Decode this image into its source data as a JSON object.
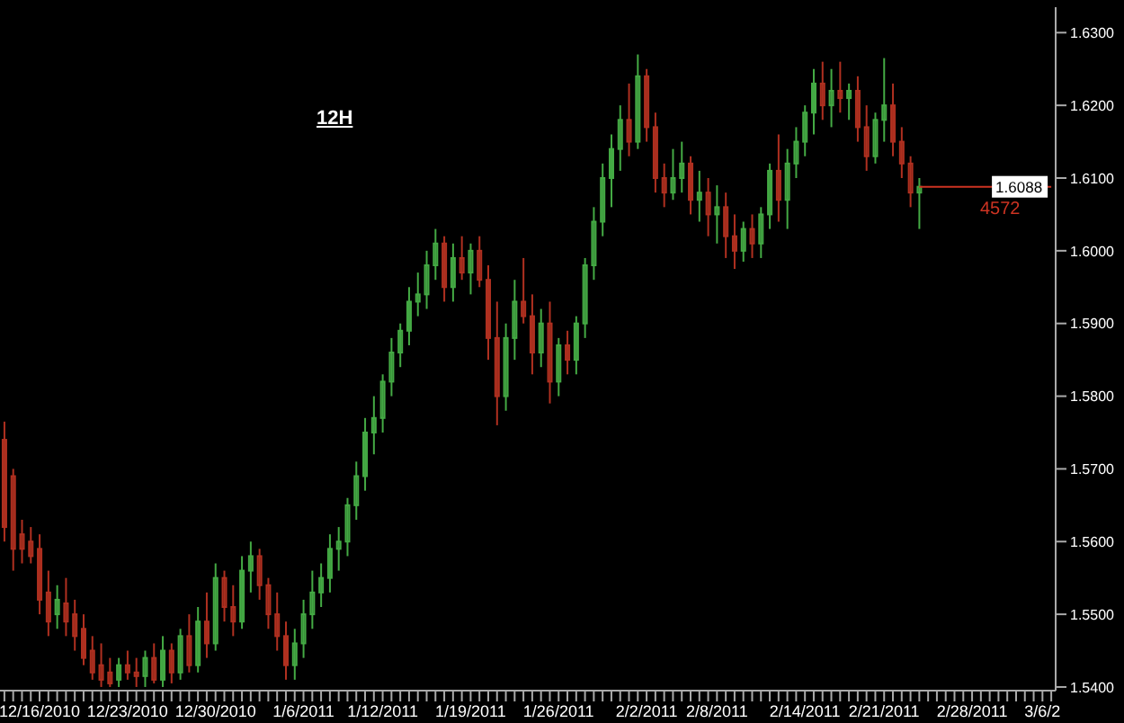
{
  "chart_data": {
    "type": "candlestick",
    "categories": [
      null,
      null,
      null,
      null,
      "12/16/2010",
      null,
      null,
      null,
      null,
      null,
      null,
      null,
      null,
      null,
      "12/23/2010",
      null,
      null,
      null,
      null,
      null,
      null,
      null,
      null,
      null,
      "12/30/2010",
      null,
      null,
      null,
      null,
      null,
      null,
      null,
      null,
      null,
      "1/6/2011",
      null,
      null,
      null,
      null,
      null,
      null,
      null,
      null,
      "1/12/2011",
      null,
      null,
      null,
      null,
      null,
      null,
      null,
      null,
      null,
      "1/19/2011",
      null,
      null,
      null,
      null,
      null,
      null,
      null,
      null,
      null,
      "1/26/2011",
      null,
      null,
      null,
      null,
      null,
      null,
      null,
      null,
      null,
      "2/2/2011",
      null,
      null,
      null,
      null,
      null,
      null,
      null,
      "2/8/2011",
      null,
      null,
      null,
      null,
      null,
      null,
      null,
      null,
      null,
      "2/14/2011",
      null,
      null,
      null,
      null,
      null,
      null,
      null,
      null,
      "2/21/2011",
      null,
      null,
      null,
      null,
      null,
      null,
      null,
      null,
      null,
      "2/28/2011",
      null,
      null,
      null,
      null,
      null,
      null,
      null,
      "3/6/2",
      null
    ],
    "ohlc": [
      [
        1.574,
        1.5765,
        1.56,
        1.562
      ],
      [
        1.569,
        1.57,
        1.556,
        1.559
      ],
      [
        1.561,
        1.563,
        1.557,
        1.559
      ],
      [
        1.56,
        1.562,
        1.557,
        1.558
      ],
      [
        1.559,
        1.561,
        1.55,
        1.552
      ],
      [
        1.553,
        1.556,
        1.547,
        1.549
      ],
      [
        1.55,
        1.554,
        1.548,
        1.552
      ],
      [
        1.5515,
        1.555,
        1.547,
        1.549
      ],
      [
        1.55,
        1.552,
        1.545,
        1.547
      ],
      [
        1.548,
        1.55,
        1.543,
        1.544
      ],
      [
        1.545,
        1.547,
        1.541,
        1.542
      ],
      [
        1.543,
        1.546,
        1.54,
        1.541
      ],
      [
        1.542,
        1.544,
        1.54,
        1.5405
      ],
      [
        1.541,
        1.544,
        1.54,
        1.543
      ],
      [
        1.543,
        1.545,
        1.541,
        1.542
      ],
      [
        1.542,
        1.544,
        1.54,
        1.5415
      ],
      [
        1.5415,
        1.545,
        1.54,
        1.544
      ],
      [
        1.544,
        1.546,
        1.5405,
        1.541
      ],
      [
        1.541,
        1.547,
        1.54,
        1.545
      ],
      [
        1.545,
        1.546,
        1.5405,
        1.542
      ],
      [
        1.542,
        1.548,
        1.541,
        1.547
      ],
      [
        1.547,
        1.55,
        1.542,
        1.543
      ],
      [
        1.543,
        1.551,
        1.542,
        1.549
      ],
      [
        1.549,
        1.553,
        1.544,
        1.546
      ],
      [
        1.546,
        1.557,
        1.545,
        1.555
      ],
      [
        1.555,
        1.556,
        1.549,
        1.551
      ],
      [
        1.551,
        1.554,
        1.547,
        1.549
      ],
      [
        1.549,
        1.558,
        1.548,
        1.556
      ],
      [
        1.556,
        1.56,
        1.553,
        1.558
      ],
      [
        1.558,
        1.559,
        1.552,
        1.554
      ],
      [
        1.554,
        1.555,
        1.548,
        1.55
      ],
      [
        1.55,
        1.553,
        1.545,
        1.547
      ],
      [
        1.547,
        1.549,
        1.541,
        1.543
      ],
      [
        1.543,
        1.548,
        1.541,
        1.546
      ],
      [
        1.546,
        1.552,
        1.544,
        1.55
      ],
      [
        1.55,
        1.556,
        1.548,
        1.553
      ],
      [
        1.553,
        1.557,
        1.551,
        1.555
      ],
      [
        1.555,
        1.561,
        1.553,
        1.559
      ],
      [
        1.559,
        1.562,
        1.556,
        1.56
      ],
      [
        1.56,
        1.566,
        1.558,
        1.565
      ],
      [
        1.565,
        1.571,
        1.563,
        1.569
      ],
      [
        1.569,
        1.577,
        1.567,
        1.575
      ],
      [
        1.575,
        1.58,
        1.572,
        1.577
      ],
      [
        1.577,
        1.583,
        1.575,
        1.582
      ],
      [
        1.582,
        1.588,
        1.58,
        1.586
      ],
      [
        1.586,
        1.59,
        1.584,
        1.589
      ],
      [
        1.589,
        1.595,
        1.587,
        1.593
      ],
      [
        1.593,
        1.597,
        1.591,
        1.594
      ],
      [
        1.594,
        1.6,
        1.592,
        1.598
      ],
      [
        1.598,
        1.603,
        1.596,
        1.601
      ],
      [
        1.601,
        1.602,
        1.593,
        1.595
      ],
      [
        1.595,
        1.601,
        1.593,
        1.599
      ],
      [
        1.599,
        1.602,
        1.596,
        1.597
      ],
      [
        1.597,
        1.601,
        1.594,
        1.6
      ],
      [
        1.6,
        1.602,
        1.595,
        1.596
      ],
      [
        1.596,
        1.598,
        1.585,
        1.588
      ],
      [
        1.588,
        1.593,
        1.576,
        1.58
      ],
      [
        1.58,
        1.59,
        1.578,
        1.588
      ],
      [
        1.588,
        1.596,
        1.585,
        1.593
      ],
      [
        1.593,
        1.599,
        1.59,
        1.591
      ],
      [
        1.591,
        1.594,
        1.583,
        1.586
      ],
      [
        1.586,
        1.592,
        1.584,
        1.59
      ],
      [
        1.59,
        1.593,
        1.579,
        1.582
      ],
      [
        1.582,
        1.588,
        1.58,
        1.587
      ],
      [
        1.587,
        1.589,
        1.583,
        1.585
      ],
      [
        1.585,
        1.591,
        1.583,
        1.59
      ],
      [
        1.59,
        1.599,
        1.588,
        1.598
      ],
      [
        1.598,
        1.606,
        1.596,
        1.604
      ],
      [
        1.604,
        1.612,
        1.602,
        1.61
      ],
      [
        1.61,
        1.616,
        1.606,
        1.614
      ],
      [
        1.614,
        1.62,
        1.611,
        1.618
      ],
      [
        1.618,
        1.623,
        1.613,
        1.615
      ],
      [
        1.615,
        1.627,
        1.614,
        1.624
      ],
      [
        1.624,
        1.625,
        1.615,
        1.617
      ],
      [
        1.617,
        1.619,
        1.608,
        1.61
      ],
      [
        1.61,
        1.612,
        1.606,
        1.608
      ],
      [
        1.608,
        1.614,
        1.607,
        1.61
      ],
      [
        1.61,
        1.615,
        1.608,
        1.612
      ],
      [
        1.612,
        1.613,
        1.605,
        1.607
      ],
      [
        1.607,
        1.611,
        1.604,
        1.608
      ],
      [
        1.608,
        1.61,
        1.602,
        1.605
      ],
      [
        1.605,
        1.609,
        1.601,
        1.606
      ],
      [
        1.606,
        1.608,
        1.599,
        1.602
      ],
      [
        1.602,
        1.605,
        1.5975,
        1.6
      ],
      [
        1.6,
        1.604,
        1.5985,
        1.603
      ],
      [
        1.603,
        1.605,
        1.599,
        1.601
      ],
      [
        1.601,
        1.606,
        1.599,
        1.605
      ],
      [
        1.605,
        1.612,
        1.603,
        1.611
      ],
      [
        1.611,
        1.616,
        1.604,
        1.607
      ],
      [
        1.607,
        1.614,
        1.603,
        1.612
      ],
      [
        1.612,
        1.617,
        1.61,
        1.615
      ],
      [
        1.615,
        1.62,
        1.613,
        1.619
      ],
      [
        1.619,
        1.625,
        1.616,
        1.623
      ],
      [
        1.623,
        1.626,
        1.618,
        1.62
      ],
      [
        1.62,
        1.625,
        1.617,
        1.622
      ],
      [
        1.622,
        1.626,
        1.619,
        1.621
      ],
      [
        1.621,
        1.623,
        1.618,
        1.622
      ],
      [
        1.622,
        1.624,
        1.615,
        1.617
      ],
      [
        1.617,
        1.62,
        1.611,
        1.613
      ],
      [
        1.613,
        1.619,
        1.612,
        1.618
      ],
      [
        1.618,
        1.6265,
        1.615,
        1.62
      ],
      [
        1.62,
        1.623,
        1.613,
        1.615
      ],
      [
        1.615,
        1.617,
        1.61,
        1.612
      ],
      [
        1.612,
        1.613,
        1.606,
        1.608
      ],
      [
        1.608,
        1.61,
        1.603,
        1.6088
      ],
      null,
      null,
      null,
      null,
      null,
      null,
      null,
      null,
      null,
      null,
      null,
      null,
      null,
      null,
      null
    ],
    "colors": [
      "#b03020",
      "#b03020",
      "#b03020",
      "#b03020",
      "#b03020",
      "#b03020",
      "#44aa44",
      "#b03020",
      "#b03020",
      "#b03020",
      "#b03020",
      "#b03020",
      "#b03020",
      "#44aa44",
      "#b03020",
      "#b03020",
      "#44aa44",
      "#b03020",
      "#44aa44",
      "#b03020",
      "#44aa44",
      "#b03020",
      "#44aa44",
      "#b03020",
      "#44aa44",
      "#b03020",
      "#b03020",
      "#44aa44",
      "#44aa44",
      "#b03020",
      "#b03020",
      "#b03020",
      "#b03020",
      "#44aa44",
      "#44aa44",
      "#44aa44",
      "#44aa44",
      "#44aa44",
      "#44aa44",
      "#44aa44",
      "#44aa44",
      "#44aa44",
      "#44aa44",
      "#44aa44",
      "#44aa44",
      "#44aa44",
      "#44aa44",
      "#44aa44",
      "#44aa44",
      "#44aa44",
      "#b03020",
      "#44aa44",
      "#b03020",
      "#44aa44",
      "#b03020",
      "#b03020",
      "#b03020",
      "#44aa44",
      "#44aa44",
      "#b03020",
      "#b03020",
      "#44aa44",
      "#b03020",
      "#44aa44",
      "#b03020",
      "#44aa44",
      "#44aa44",
      "#44aa44",
      "#44aa44",
      "#44aa44",
      "#44aa44",
      "#b03020",
      "#44aa44",
      "#b03020",
      "#b03020",
      "#b03020",
      "#44aa44",
      "#44aa44",
      "#b03020",
      "#44aa44",
      "#b03020",
      "#44aa44",
      "#b03020",
      "#b03020",
      "#44aa44",
      "#b03020",
      "#44aa44",
      "#44aa44",
      "#b03020",
      "#44aa44",
      "#44aa44",
      "#44aa44",
      "#44aa44",
      "#b03020",
      "#44aa44",
      "#b03020",
      "#44aa44",
      "#b03020",
      "#b03020",
      "#44aa44",
      "#44aa44",
      "#b03020",
      "#b03020",
      "#b03020",
      "#44aa44",
      null,
      null,
      null,
      null,
      null,
      null,
      null,
      null,
      null,
      null,
      null,
      null,
      null,
      null,
      null
    ],
    "ylim": [
      1.5395,
      1.6335
    ],
    "yticks": [
      {
        "value": 1.54,
        "label": "1.5400"
      },
      {
        "value": 1.55,
        "label": "1.5500"
      },
      {
        "value": 1.56,
        "label": "1.5600"
      },
      {
        "value": 1.57,
        "label": "1.5700"
      },
      {
        "value": 1.58,
        "label": "1.5800"
      },
      {
        "value": 1.59,
        "label": "1.5900"
      },
      {
        "value": 1.6,
        "label": "1.6000"
      },
      {
        "value": 1.61,
        "label": "1.6100"
      },
      {
        "value": 1.62,
        "label": "1.6200"
      },
      {
        "value": 1.63,
        "label": "1.6300"
      }
    ],
    "ref_lines": [
      {
        "axis": "y",
        "value": 1.6088,
        "label": "1.6088",
        "color": "#cc3322"
      }
    ],
    "annotations": [
      "12H",
      "4572"
    ]
  }
}
